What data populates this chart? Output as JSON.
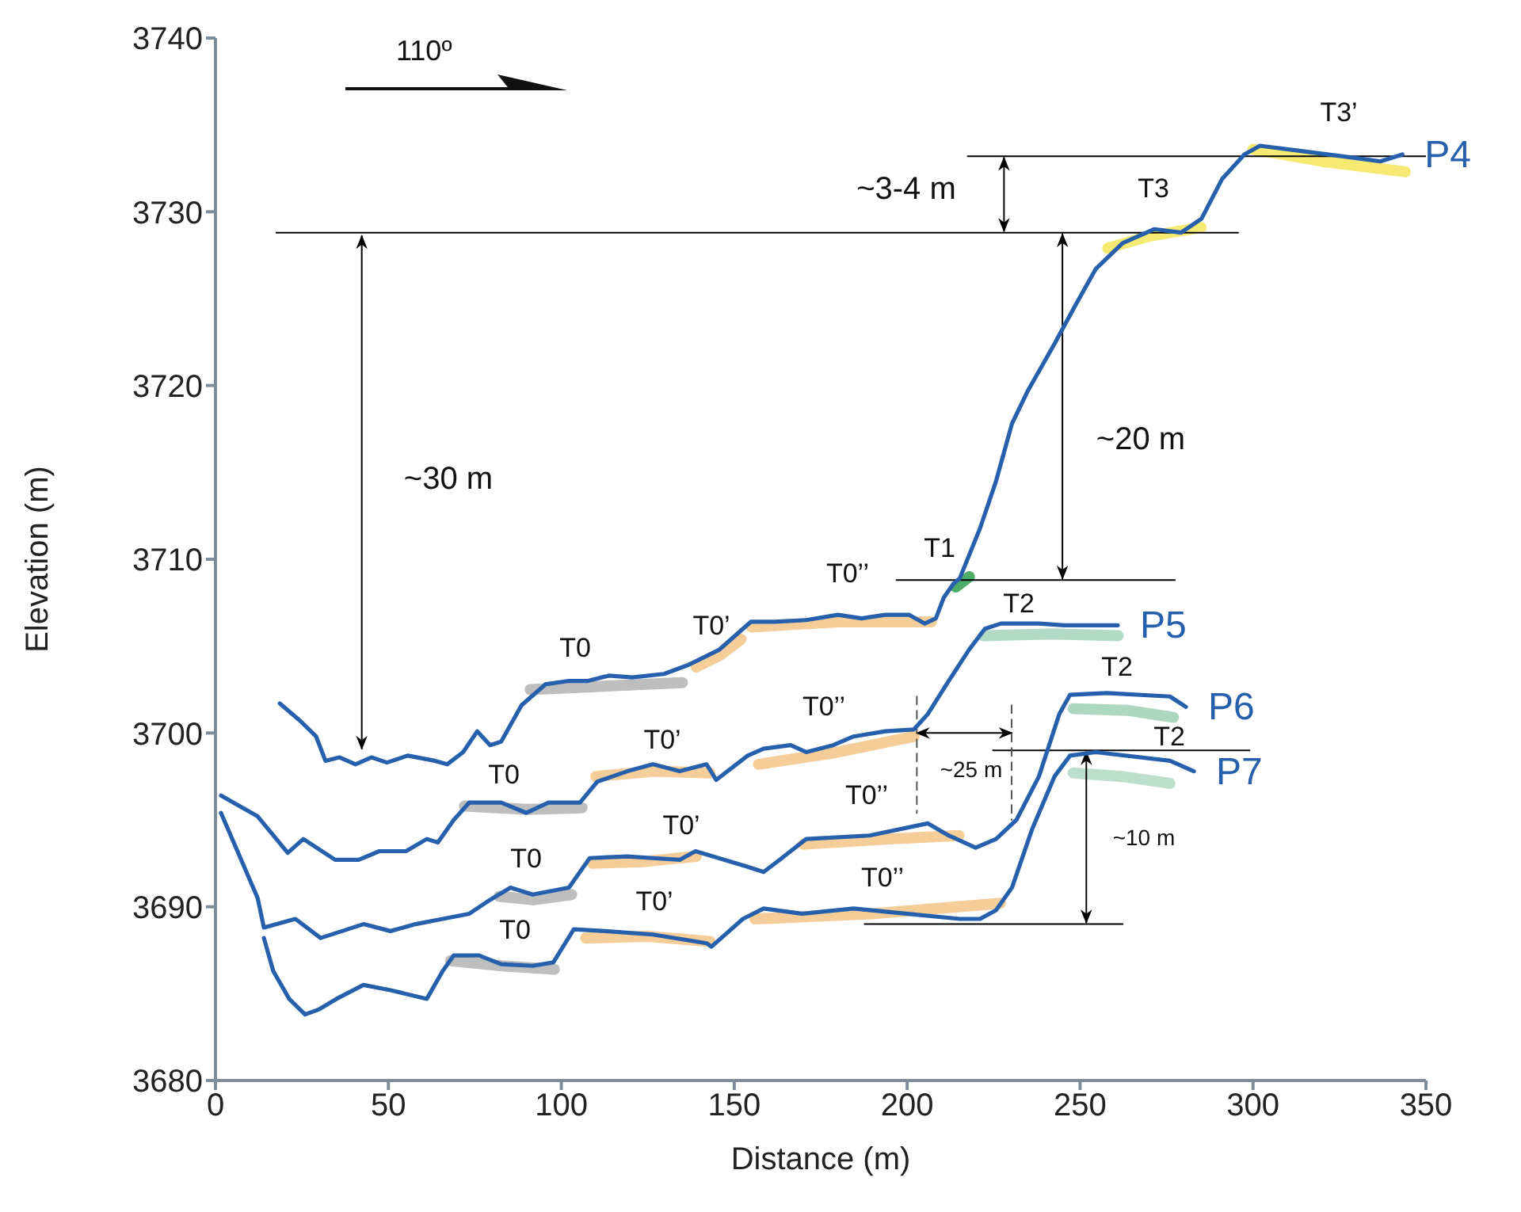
{
  "chart_data": {
    "type": "line",
    "xlabel": "Distance (m)",
    "ylabel": "Elevation (m)",
    "xlim": [
      0,
      350
    ],
    "xticks": [
      0,
      50,
      100,
      150,
      200,
      250,
      300,
      350
    ],
    "ylim": [
      3680,
      3740
    ],
    "yticks": [
      3680,
      3690,
      3700,
      3710,
      3720,
      3730,
      3740
    ],
    "marker": "none",
    "annotations": [
      "110º",
      "~30 m",
      "~3-4 m",
      "~20 m",
      "~25 m",
      "~10 m",
      "T0",
      "T0’",
      "T0’’",
      "T1",
      "T3",
      "T3’",
      "T0",
      "T0’",
      "T0’’",
      "T2",
      "T0",
      "T0’",
      "T0’’",
      "T2",
      "T0",
      "T0’",
      "T0’’",
      "T2"
    ],
    "series": [
      {
        "type": "line",
        "color": "#b3b3b3",
        "x": [
          91,
          113,
          135
        ],
        "values": [
          3702.5,
          3702.7,
          3702.9
        ]
      },
      {
        "type": "line",
        "color": "#f3c486",
        "x": [
          139,
          146,
          152
        ],
        "values": [
          3703.8,
          3704.5,
          3705.4
        ]
      },
      {
        "type": "line",
        "color": "#f3c486",
        "x": [
          155,
          180,
          207
        ],
        "values": [
          3706.1,
          3706.4,
          3706.4
        ]
      },
      {
        "type": "line",
        "color": "#2f9e4f",
        "x": [
          214,
          218
        ],
        "values": [
          3708.4,
          3709.0
        ]
      },
      {
        "type": "line",
        "color": "#f5e65a",
        "x": [
          258,
          270,
          285
        ],
        "values": [
          3727.9,
          3728.6,
          3729.1
        ]
      },
      {
        "type": "line",
        "color": "#f5e65a",
        "x": [
          300,
          320,
          344
        ],
        "values": [
          3733.6,
          3732.9,
          3732.3
        ]
      },
      {
        "type": "line",
        "color": "#b3b3b3",
        "x": [
          72,
          90,
          106
        ],
        "values": [
          3695.8,
          3695.6,
          3695.7
        ]
      },
      {
        "type": "line",
        "color": "#f3c486",
        "x": [
          110,
          127,
          143
        ],
        "values": [
          3697.5,
          3697.8,
          3697.7
        ]
      },
      {
        "type": "line",
        "color": "#f3c486",
        "x": [
          157,
          180,
          202
        ],
        "values": [
          3698.2,
          3698.9,
          3699.8
        ]
      },
      {
        "type": "line",
        "color": "#a6d4bd",
        "x": [
          222,
          242,
          261
        ],
        "values": [
          3705.6,
          3705.7,
          3705.6
        ]
      },
      {
        "type": "line",
        "color": "#b3b3b3",
        "x": [
          82,
          92,
          103
        ],
        "values": [
          3690.6,
          3690.4,
          3690.7
        ]
      },
      {
        "type": "line",
        "color": "#f3c486",
        "x": [
          109,
          124,
          139
        ],
        "values": [
          3692.5,
          3692.6,
          3692.9
        ]
      },
      {
        "type": "line",
        "color": "#f3c486",
        "x": [
          170,
          195,
          215
        ],
        "values": [
          3693.6,
          3693.9,
          3694.1
        ]
      },
      {
        "type": "line",
        "color": "#9fd0b6",
        "x": [
          248,
          264,
          277
        ],
        "values": [
          3701.4,
          3701.3,
          3700.9
        ]
      },
      {
        "type": "line",
        "color": "#b3b3b3",
        "x": [
          68,
          83,
          98
        ],
        "values": [
          3686.9,
          3686.6,
          3686.4
        ]
      },
      {
        "type": "line",
        "color": "#f3c486",
        "x": [
          107,
          125,
          143
        ],
        "values": [
          3688.2,
          3688.3,
          3688.0
        ]
      },
      {
        "type": "line",
        "color": "#f3c486",
        "x": [
          156,
          190,
          227
        ],
        "values": [
          3689.3,
          3689.6,
          3690.2
        ]
      },
      {
        "type": "line",
        "color": "#afd8c4",
        "x": [
          248,
          262,
          276
        ],
        "values": [
          3697.7,
          3697.5,
          3697.1
        ]
      },
      {
        "type": "line",
        "color": "#000000",
        "line_style": "solid",
        "x": [
          17.6,
          295.7
        ],
        "values": [
          3728.8,
          3728.8
        ]
      },
      {
        "type": "line",
        "color": "#000000",
        "line_style": "solid",
        "x": [
          217.5,
          350
        ],
        "values": [
          3733.2,
          3733.2
        ]
      },
      {
        "type": "line",
        "color": "#000000",
        "line_style": "solid",
        "x": [
          196.9,
          277.4
        ],
        "values": [
          3708.8,
          3708.8
        ]
      },
      {
        "type": "line",
        "color": "#000000",
        "line_style": "solid",
        "x": [
          224.8,
          299
        ],
        "values": [
          3699.0,
          3699.0
        ]
      },
      {
        "type": "line",
        "color": "#000000",
        "line_style": "solid",
        "x": [
          187.7,
          262.3
        ],
        "values": [
          3689.0,
          3689.0
        ]
      },
      {
        "type": "line",
        "color": "#000000",
        "line_style": "solid",
        "x": [
          42.3,
          42.3
        ],
        "values": [
          3728.6,
          3699.1
        ]
      },
      {
        "type": "line",
        "color": "#000000",
        "line_style": "solid",
        "x": [
          228,
          228
        ],
        "values": [
          3733.1,
          3728.9
        ]
      },
      {
        "type": "line",
        "color": "#000000",
        "line_style": "solid",
        "x": [
          244.9,
          244.9
        ],
        "values": [
          3728.7,
          3708.9
        ]
      },
      {
        "type": "line",
        "color": "#000000",
        "line_style": "solid",
        "x": [
          251.8,
          251.8
        ],
        "values": [
          3698.9,
          3689.1
        ]
      },
      {
        "type": "line",
        "color": "#000000",
        "line_style": "solid",
        "x": [
          202.8,
          230.2
        ],
        "values": [
          3700.0,
          3700.0
        ]
      },
      {
        "type": "line",
        "color": "#555555",
        "line_style": "dashed",
        "x": [
          202.8,
          202.8
        ],
        "values": [
          3702.1,
          3695.4
        ]
      },
      {
        "type": "line",
        "color": "#555555",
        "line_style": "dashed",
        "x": [
          230.2,
          230.2
        ],
        "values": [
          3701.6,
          3695.0
        ]
      },
      {
        "name": "P4",
        "color": "#2660ac",
        "x": [
          18.6,
          24.5,
          29.1,
          31.8,
          35.9,
          40.5,
          45.1,
          49.6,
          55.6,
          63.4,
          67.0,
          71.6,
          75.7,
          79.4,
          82.6,
          88.5,
          95.4,
          102.2,
          107.7,
          113.7,
          120.5,
          129.7,
          136.5,
          145.7,
          154.8,
          161.7,
          170.8,
          180.0,
          186.8,
          193.7,
          200.6,
          205.1,
          208.3,
          210.6,
          213.4,
          215.2,
          221.1,
          225.7,
          230.3,
          234.9,
          242.6,
          248.6,
          254.5,
          262.3,
          271.4,
          279.2,
          285.1,
          291.1,
          297.5,
          302.0,
          313.9,
          329.5,
          336.8,
          343.2
        ],
        "values": [
          3701.7,
          3700.7,
          3699.8,
          3698.4,
          3698.6,
          3698.2,
          3698.6,
          3698.3,
          3698.7,
          3698.4,
          3698.2,
          3698.9,
          3700.1,
          3699.3,
          3699.5,
          3701.6,
          3702.8,
          3703.0,
          3703.0,
          3703.3,
          3703.2,
          3703.4,
          3703.9,
          3704.8,
          3706.4,
          3706.4,
          3706.5,
          3706.8,
          3706.6,
          3706.8,
          3706.8,
          3706.3,
          3706.6,
          3707.8,
          3708.6,
          3708.9,
          3711.8,
          3714.5,
          3717.8,
          3719.7,
          3722.4,
          3724.6,
          3726.7,
          3728.2,
          3729.0,
          3728.8,
          3729.6,
          3731.9,
          3733.3,
          3733.8,
          3733.5,
          3733.1,
          3732.9,
          3733.3
        ]
      },
      {
        "name": "P5",
        "color": "#2660ac",
        "x": [
          1.6,
          12.2,
          20.9,
          25.4,
          34.6,
          41.4,
          47.4,
          55.1,
          61.1,
          64.3,
          68.9,
          73.4,
          82.6,
          89.9,
          96.3,
          105.4,
          110.4,
          119.1,
          126.5,
          134.2,
          142.0,
          144.8,
          153.9,
          158.5,
          166.3,
          170.8,
          178.6,
          184.5,
          193.7,
          201.9,
          206.0,
          212.0,
          217.9,
          222.5,
          227.1,
          238.1,
          245.4,
          254.5,
          260.9
        ],
        "values": [
          3696.4,
          3695.2,
          3693.1,
          3693.9,
          3692.7,
          3692.7,
          3693.2,
          3693.2,
          3693.9,
          3693.7,
          3695.0,
          3696.0,
          3696.0,
          3695.4,
          3696.0,
          3696.0,
          3697.2,
          3697.8,
          3698.2,
          3697.8,
          3698.2,
          3697.3,
          3698.7,
          3699.1,
          3699.3,
          3698.9,
          3699.3,
          3699.8,
          3700.1,
          3700.2,
          3701.1,
          3703.0,
          3704.8,
          3706.0,
          3706.3,
          3706.3,
          3706.2,
          3706.2,
          3706.2
        ]
      },
      {
        "name": "P6",
        "color": "#2660ac",
        "x": [
          1.6,
          12.2,
          14.0,
          23.1,
          30.4,
          42.8,
          50.6,
          57.9,
          65.7,
          73.4,
          79.4,
          85.3,
          91.7,
          102.2,
          108.2,
          119.1,
          126.5,
          134.2,
          138.8,
          153.9,
          158.5,
          163.1,
          170.8,
          189.1,
          206.0,
          212.0,
          219.8,
          225.7,
          231.6,
          238.1,
          244.0,
          247.1,
          257.7,
          276.0,
          280.6
        ],
        "values": [
          3695.4,
          3690.5,
          3688.8,
          3689.3,
          3688.2,
          3689.0,
          3688.6,
          3689.0,
          3689.3,
          3689.6,
          3690.4,
          3691.1,
          3690.7,
          3691.1,
          3692.8,
          3692.9,
          3692.8,
          3692.7,
          3693.2,
          3692.3,
          3692.0,
          3692.7,
          3693.9,
          3694.1,
          3694.8,
          3694.1,
          3693.4,
          3693.9,
          3695.0,
          3697.5,
          3701.1,
          3702.2,
          3702.3,
          3702.1,
          3701.5
        ]
      },
      {
        "name": "P7",
        "color": "#2660ac",
        "x": [
          14.0,
          16.7,
          21.3,
          25.9,
          30.0,
          35.0,
          42.8,
          50.6,
          61.1,
          65.7,
          68.9,
          76.2,
          82.6,
          91.7,
          97.7,
          103.6,
          112.7,
          126.5,
          142.0,
          143.4,
          152.5,
          158.5,
          169.5,
          184.5,
          199.6,
          215.2,
          221.1,
          225.7,
          230.3,
          236.2,
          242.6,
          247.1,
          254.5,
          276.0,
          282.9
        ],
        "values": [
          3688.2,
          3686.3,
          3684.7,
          3683.8,
          3684.1,
          3684.7,
          3685.5,
          3685.2,
          3684.7,
          3686.3,
          3687.2,
          3687.2,
          3686.7,
          3686.6,
          3686.8,
          3688.7,
          3688.6,
          3688.4,
          3687.9,
          3687.7,
          3689.3,
          3689.9,
          3689.6,
          3689.9,
          3689.6,
          3689.3,
          3689.3,
          3689.8,
          3691.1,
          3694.5,
          3697.5,
          3698.7,
          3698.9,
          3698.4,
          3697.8
        ]
      }
    ]
  }
}
